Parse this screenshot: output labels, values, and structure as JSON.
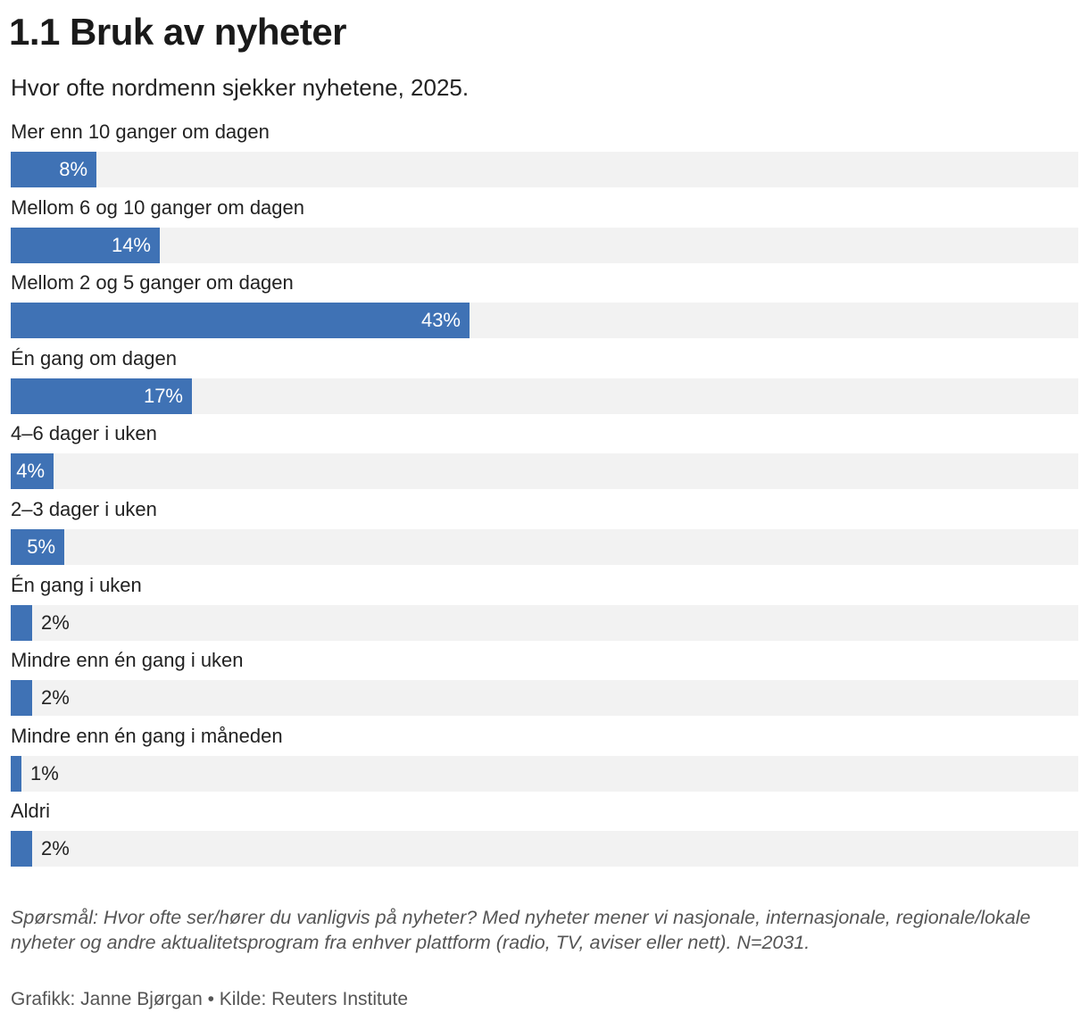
{
  "chart_data": {
    "type": "bar",
    "orientation": "horizontal",
    "title": "1.1 Bruk av nyheter",
    "subtitle": "Hvor ofte nordmenn sjekker nyhetene, 2025.",
    "categories": [
      "Mer enn 10 ganger om dagen",
      "Mellom 6 og 10 ganger om dagen",
      "Mellom 2 og 5 ganger om dagen",
      "Én gang om dagen",
      "4–6 dager i uken",
      "2–3 dager i uken",
      "Én gang i uken",
      "Mindre enn én gang i uken",
      "Mindre enn én gang i måneden",
      "Aldri"
    ],
    "values": [
      8,
      14,
      43,
      17,
      4,
      5,
      2,
      2,
      1,
      2
    ],
    "value_labels": [
      "8%",
      "14%",
      "43%",
      "17%",
      "4%",
      "5%",
      "2%",
      "2%",
      "1%",
      "2%"
    ],
    "xlim": [
      0,
      100
    ],
    "unit": "%",
    "bar_color": "#3f72b5",
    "track_color": "#f2f2f2",
    "label_inside_color": "#ffffff",
    "label_outside_color": "#222222",
    "grid": false,
    "legend": "none"
  },
  "footer": {
    "note": "Spørsmål: Hvor ofte ser/hører du vanligvis på nyheter? Med nyheter mener vi nasjonale, internasjonale, regionale/lokale nyheter og andre aktualitetsprogram fra enhver plattform (radio, TV, aviser eller nett). N=2031.",
    "credit": "Grafikk: Janne Bjørgan • Kilde: Reuters Institute"
  }
}
